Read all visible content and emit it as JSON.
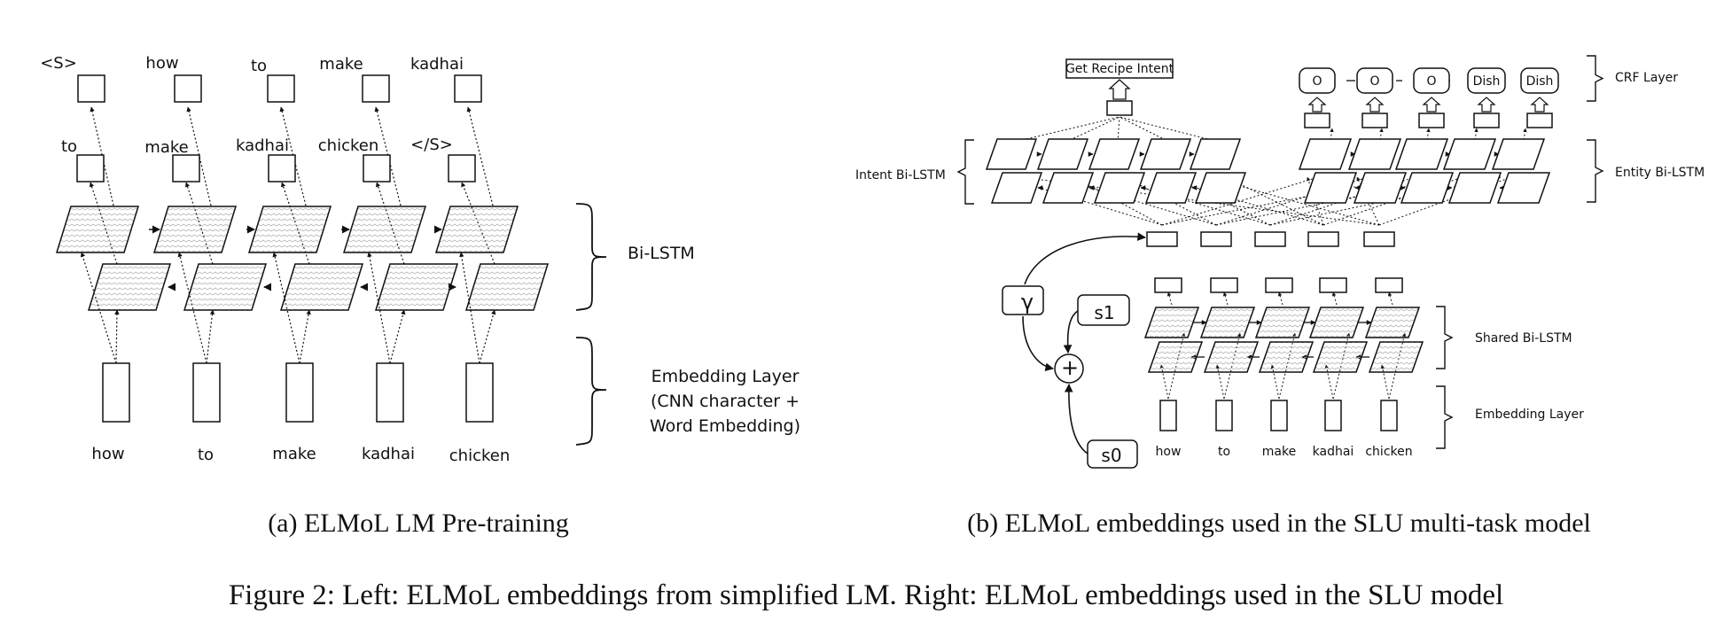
{
  "figure_caption": "Figure 2: Left: ELMoL embeddings from simplified LM. Right: ELMoL embeddings used in the SLU model",
  "left": {
    "subcaption": "(a) ELMoL LM Pre-training",
    "top_tokens": [
      "<S>",
      "how",
      "to",
      "make",
      "kadhai"
    ],
    "mid_tokens": [
      "to",
      "make",
      "kadhai",
      "chicken",
      "</S>"
    ],
    "input_tokens": [
      "how",
      "to",
      "make",
      "kadhai",
      "chicken"
    ],
    "bilstm_label": "Bi-LSTM",
    "embedding_label": [
      "Embedding Layer",
      "(CNN character +",
      "Word Embedding)"
    ]
  },
  "right": {
    "subcaption": "(b) ELMoL embeddings used in the SLU multi-task model",
    "intent_box": "Get Recipe Intent",
    "crf_tags": [
      "O",
      "O",
      "O",
      "Dish",
      "Dish"
    ],
    "crf_label": "CRF Layer",
    "intent_bilstm_label": "Intent Bi-LSTM",
    "entity_bilstm_label": "Entity Bi-LSTM",
    "shared_bilstm_label": "Shared Bi-LSTM",
    "embedding_label": "Embedding Layer",
    "input_tokens": [
      "how",
      "to",
      "make",
      "kadhai",
      "chicken"
    ],
    "gamma": "γ",
    "s1": "s1",
    "s0": "s0",
    "plus": "+"
  }
}
